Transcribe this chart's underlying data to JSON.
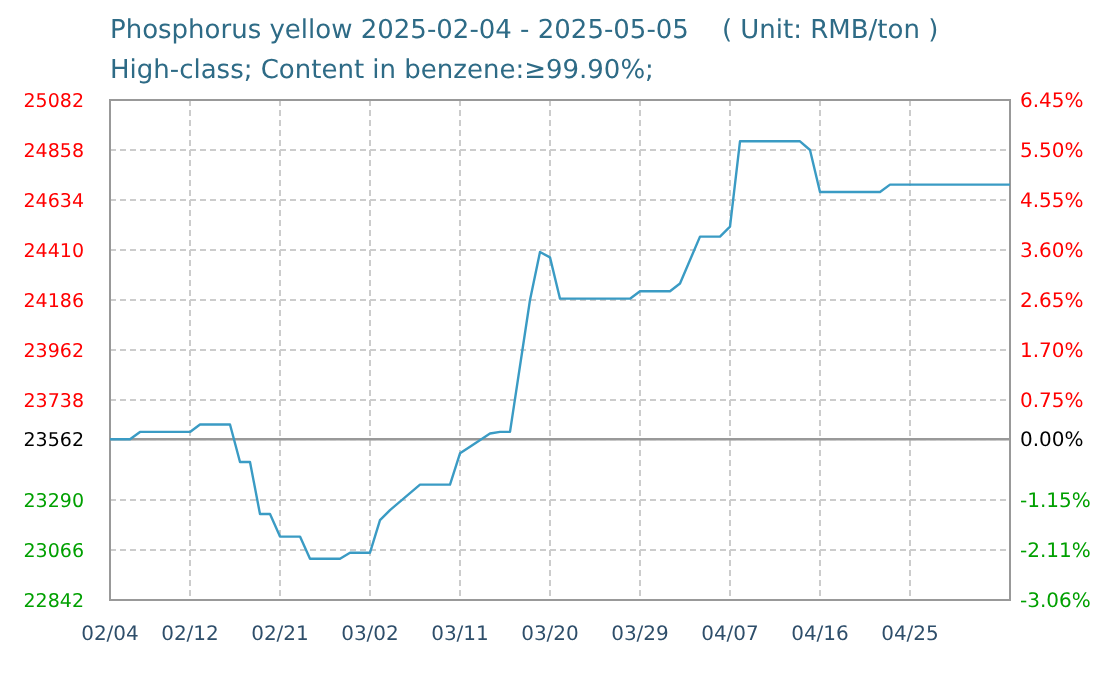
{
  "chart_data": {
    "type": "line",
    "title": "Phosphorus yellow 2025-02-04 - 2025-05-05    ( Unit: RMB/ton )",
    "subtitle": "High-class; Content in benzene:≥99.90%;",
    "x": [
      "2025-02-04",
      "2025-02-06",
      "2025-02-07",
      "2025-02-12",
      "2025-02-13",
      "2025-02-16",
      "2025-02-17",
      "2025-02-18",
      "2025-02-19",
      "2025-02-20",
      "2025-02-21",
      "2025-02-23",
      "2025-02-24",
      "2025-02-27",
      "2025-02-28",
      "2025-03-02",
      "2025-03-03",
      "2025-03-04",
      "2025-03-07",
      "2025-03-10",
      "2025-03-11",
      "2025-03-12",
      "2025-03-14",
      "2025-03-15",
      "2025-03-16",
      "2025-03-18",
      "2025-03-19",
      "2025-03-20",
      "2025-03-21",
      "2025-03-28",
      "2025-03-29",
      "2025-04-01",
      "2025-04-02",
      "2025-04-04",
      "2025-04-06",
      "2025-04-07",
      "2025-04-08",
      "2025-04-14",
      "2025-04-15",
      "2025-04-16",
      "2025-04-22",
      "2025-04-23",
      "2025-05-05"
    ],
    "series": [
      {
        "color": "#3a9bc4",
        "values": [
          23562,
          23562,
          23595,
          23595,
          23628,
          23628,
          23460,
          23460,
          23227,
          23227,
          23126,
          23126,
          23027,
          23027,
          23054,
          23054,
          23200,
          23245,
          23359,
          23359,
          23499,
          23529,
          23588,
          23595,
          23595,
          24186,
          24401,
          24377,
          24192,
          24192,
          24225,
          24225,
          24260,
          24470,
          24470,
          24515,
          24897,
          24897,
          24858,
          24670,
          24670,
          24703,
          24703
        ]
      }
    ],
    "xlim": [
      "2025-02-04",
      "2025-05-05"
    ],
    "xticks": [
      {
        "value": "2025-02-04",
        "label": "02/04"
      },
      {
        "value": "2025-02-12",
        "label": "02/12"
      },
      {
        "value": "2025-02-21",
        "label": "02/21"
      },
      {
        "value": "2025-03-02",
        "label": "03/02"
      },
      {
        "value": "2025-03-11",
        "label": "03/11"
      },
      {
        "value": "2025-03-20",
        "label": "03/20"
      },
      {
        "value": "2025-03-29",
        "label": "03/29"
      },
      {
        "value": "2025-04-07",
        "label": "04/07"
      },
      {
        "value": "2025-04-16",
        "label": "04/16"
      },
      {
        "value": "2025-04-25",
        "label": "04/25"
      }
    ],
    "ylim": [
      22842,
      25082
    ],
    "yticks": [
      25082,
      24858,
      24634,
      24410,
      24186,
      23962,
      23738,
      23562,
      23290,
      23066,
      22842
    ],
    "y2lim": [
      -3.06,
      6.45
    ],
    "y2ticks": [
      {
        "value": 6.45,
        "label": "6.45%"
      },
      {
        "value": 5.5,
        "label": "5.50%"
      },
      {
        "value": 4.55,
        "label": "4.55%"
      },
      {
        "value": 3.6,
        "label": "3.60%"
      },
      {
        "value": 2.65,
        "label": "2.65%"
      },
      {
        "value": 1.7,
        "label": "1.70%"
      },
      {
        "value": 0.75,
        "label": "0.75%"
      },
      {
        "value": 0,
        "label": "0.00%"
      },
      {
        "value": -1.15,
        "label": "-1.15%"
      },
      {
        "value": -2.11,
        "label": "-2.11%"
      },
      {
        "value": -3.06,
        "label": "-3.06%"
      }
    ],
    "ref_lines": [
      {
        "axis": "y",
        "value": 23562,
        "color": "#999999"
      }
    ],
    "grid": true,
    "marker": "none",
    "line_style": "solid"
  }
}
